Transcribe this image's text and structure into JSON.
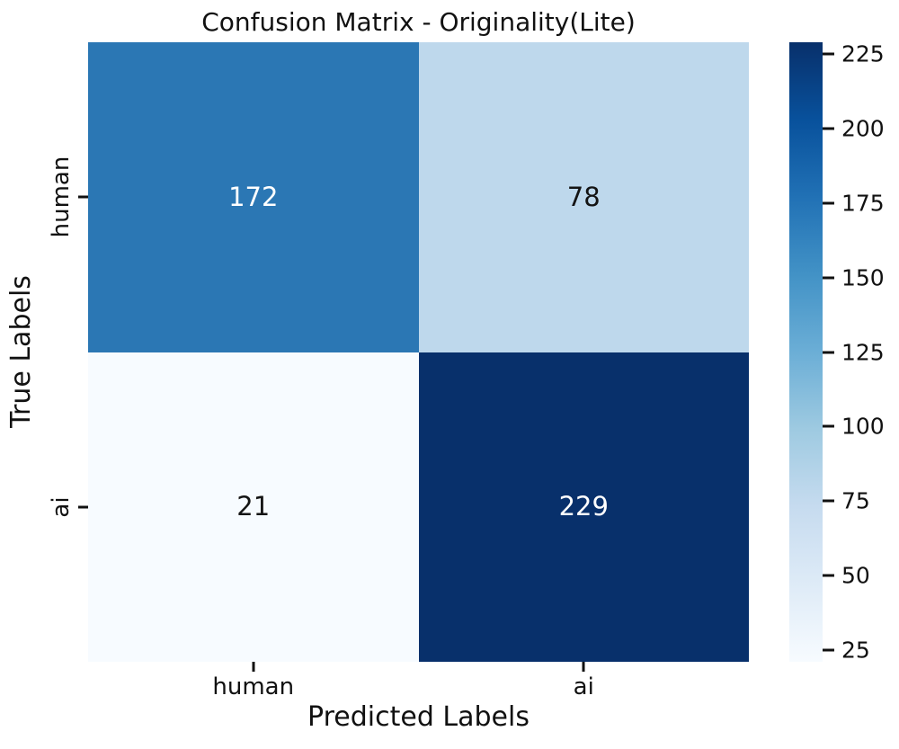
{
  "chart_data": {
    "type": "heatmap",
    "title": "Confusion Matrix - Originality(Lite)",
    "xlabel": "Predicted Labels",
    "ylabel": "True Labels",
    "x_categories": [
      "human",
      "ai"
    ],
    "y_categories": [
      "human",
      "ai"
    ],
    "matrix": [
      [
        172,
        78
      ],
      [
        21,
        229
      ]
    ],
    "cell_colors": [
      [
        "#2b77b4",
        "#bed8ec"
      ],
      [
        "#f7fbff",
        "#08306b"
      ]
    ],
    "cell_text_colors": [
      [
        "#ffffff",
        "#141414"
      ],
      [
        "#141414",
        "#ffffff"
      ]
    ],
    "colormap": "Blues",
    "grid": false,
    "legend_position": "colorbar-right",
    "colorbar": {
      "vmin": 21,
      "vmax": 229,
      "ticks": [
        25,
        50,
        75,
        100,
        125,
        150,
        175,
        200,
        225
      ],
      "gradient_stops_bottom_to_top": [
        "#f7fbff",
        "#deebf7",
        "#c6dbef",
        "#9ecae1",
        "#6baed6",
        "#4292c6",
        "#2171b5",
        "#08519c",
        "#08306b"
      ]
    }
  }
}
